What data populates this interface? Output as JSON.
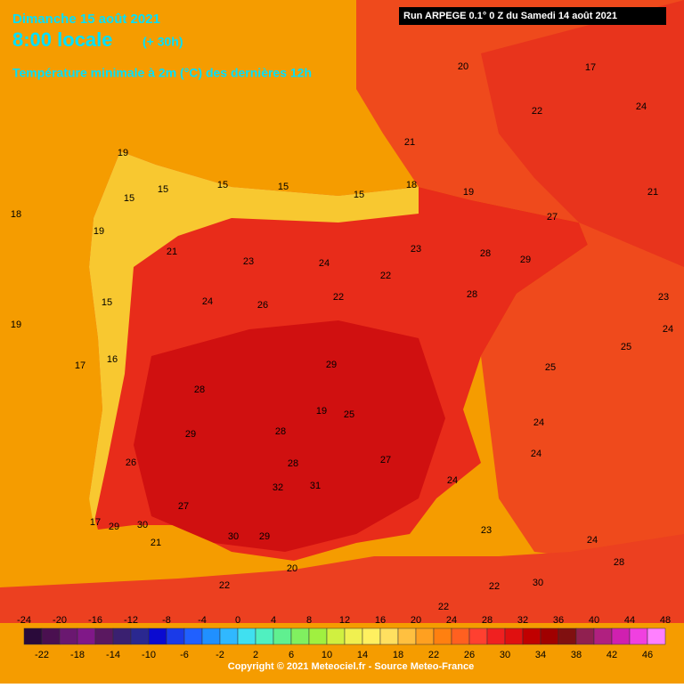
{
  "header": {
    "date": "Dimanche 15 août 2021",
    "time": "8:00 locale",
    "lead": "(+ 30h)",
    "field": "Température minimale à 2m (°C) des dernières 12h",
    "run": "Run ARPEGE 0.1° 0 Z du Samedi 14 août 2021"
  },
  "map_labels": [
    19,
    18,
    19,
    17,
    16,
    15,
    15,
    15,
    15,
    15,
    21,
    20,
    22,
    17,
    24,
    21,
    23,
    24,
    25,
    25,
    24,
    24,
    23,
    24,
    28,
    30,
    22,
    22,
    23,
    26,
    29,
    28,
    19,
    25,
    28,
    31,
    32,
    30,
    29,
    27,
    29,
    28,
    26,
    21,
    22,
    20,
    27,
    24,
    28,
    28,
    23,
    22,
    22,
    24,
    24,
    21,
    19,
    15,
    17,
    29,
    30,
    18,
    19,
    29,
    27
  ],
  "colorbar": {
    "top_labels": [
      -24,
      -20,
      -16,
      -12,
      -8,
      -4,
      0,
      4,
      8,
      12,
      16,
      20,
      24,
      28,
      32,
      36,
      40,
      44,
      48
    ],
    "bottom_labels": [
      -22,
      -18,
      -14,
      -10,
      -6,
      -2,
      2,
      6,
      10,
      14,
      18,
      22,
      26,
      30,
      34,
      38,
      42,
      46
    ],
    "colors": [
      "#2a0a3a",
      "#4a1050",
      "#6a1870",
      "#801888",
      "#5a1860",
      "#3a2070",
      "#2a2890",
      "#0a0ad0",
      "#1a3ae8",
      "#2060ff",
      "#2090ff",
      "#30b8ff",
      "#40e0f0",
      "#50f0c0",
      "#60f090",
      "#80f060",
      "#a0f040",
      "#d0f040",
      "#f0f050",
      "#fff060",
      "#ffe060",
      "#ffc040",
      "#ffa020",
      "#ff8010",
      "#ff6020",
      "#ff4030",
      "#f02020",
      "#e01010",
      "#c00000",
      "#a00000",
      "#801010",
      "#902050",
      "#b02080",
      "#d020b0",
      "#f040e0",
      "#ff80ff"
    ]
  },
  "footer": {
    "copyright": "Copyright © 2021 Meteociel.fr - Source Meteo-France"
  }
}
